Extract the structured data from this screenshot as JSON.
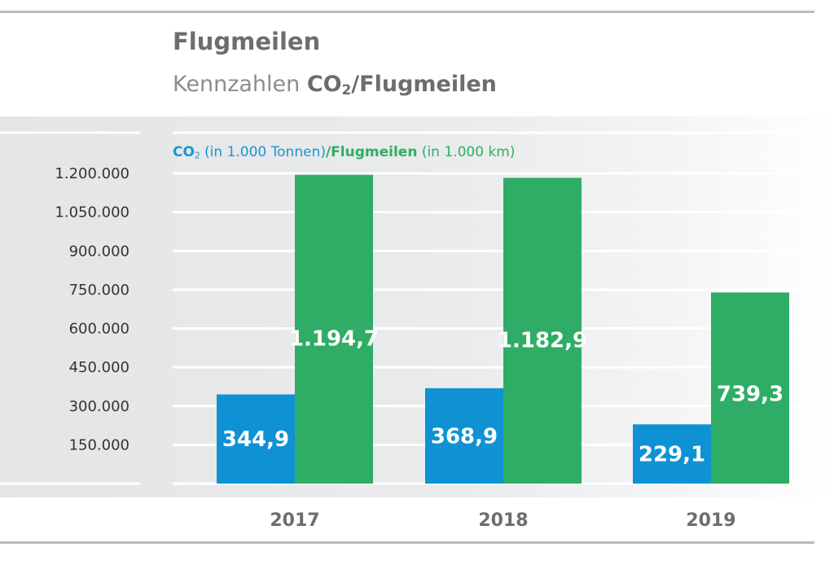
{
  "title": "Flugmeilen",
  "subtitle": {
    "prefix": "Kennzahlen ",
    "co2": "CO",
    "co2_sub": "2",
    "suffix": "/Flugmeilen"
  },
  "legend": {
    "co2_bold": "CO",
    "co2_sub": "2",
    "co2_rest": " (in 1.000 Tonnen)",
    "fm_bold": "/Flugmeilen",
    "fm_rest": " (in 1.000 km)"
  },
  "colors": {
    "co2": "#0f92d4",
    "flugmeilen": "#2fad66"
  },
  "chart_data": {
    "type": "bar",
    "categories": [
      "2017",
      "2018",
      "2019"
    ],
    "series": [
      {
        "values": [
          344.9,
          368.9,
          229.1
        ],
        "labels": [
          "344,9",
          "368,9",
          "229,1"
        ],
        "color": "#0f92d4"
      },
      {
        "values": [
          1194.7,
          1182.9,
          739.3
        ],
        "labels": [
          "1.194,7",
          "1.182,9",
          "739,3"
        ],
        "color": "#2fad66"
      }
    ],
    "y_ticks": [
      {
        "value": 150,
        "label": "150.000"
      },
      {
        "value": 300,
        "label": "300.000"
      },
      {
        "value": 450,
        "label": "450.000"
      },
      {
        "value": 600,
        "label": "600.000"
      },
      {
        "value": 750,
        "label": "750.000"
      },
      {
        "value": 900,
        "label": "900.000"
      },
      {
        "value": 1050,
        "label": "1.050.000"
      },
      {
        "value": 1200,
        "label": "1.200.000"
      }
    ],
    "ylim": [
      0,
      1200
    ],
    "grid": true,
    "legend_position": "top-left"
  }
}
